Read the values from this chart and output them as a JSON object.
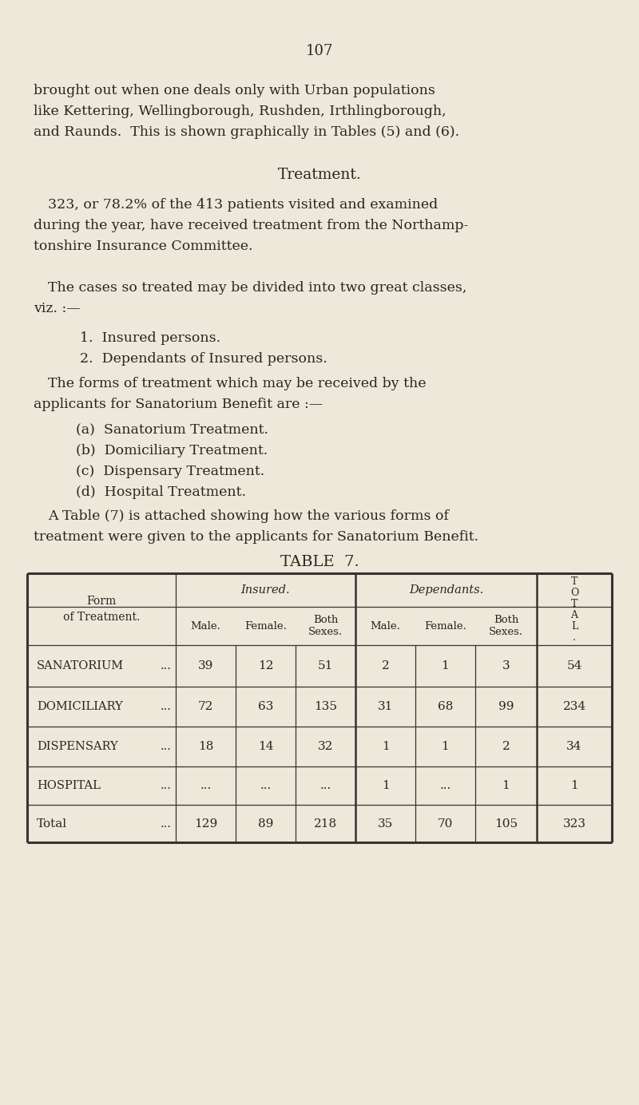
{
  "bg_color": "#ede8da",
  "text_color": "#2a2520",
  "page_number": "107",
  "para1_line1": "brought out when one deals only with Urban populations",
  "para1_line2": "like Kettering, Wellingborough, Rushden, Irthlingborough,",
  "para1_line3": "and Raunds.  This is shown graphically in Tables (5) and (6).",
  "section_title": "Treatment.",
  "para2_line1": "323, or 78.2% of the 413 patients visited and examined",
  "para2_line2": "during the year, have received treatment from the Northamp-",
  "para2_line3": "tonshire Insurance Committee.",
  "para3_line1": "The cases so treated may be divided into two great classes,",
  "para3_line2": "viz. :—",
  "list1_item1": "1.  Insured persons.",
  "list1_item2": "2.  Dependants of Insured persons.",
  "para4_line1": "The forms of treatment which may be received by the",
  "para4_line2": "applicants for Sanatorium Benefit are :—",
  "list2_item1": "(a)  Sanatorium Treatment.",
  "list2_item2": "(b)  Domiciliary Treatment.",
  "list2_item3": "(c)  Dispensary Treatment.",
  "list2_item4": "(d)  Hospital Treatment.",
  "para5_line1": "A Table (7) is attached showing how the various forms of",
  "para5_line2": "treatment were given to the applicants for Sanatorium Benefit.",
  "table_title": "TABLE  7.",
  "rows": [
    {
      "label": "Sanatorium",
      "ins_male": "39",
      "ins_female": "12",
      "ins_both": "51",
      "dep_male": "2",
      "dep_female": "1",
      "dep_both": "3",
      "total": "54"
    },
    {
      "label": "Domiciliary",
      "ins_male": "72",
      "ins_female": "63",
      "ins_both": "135",
      "dep_male": "31",
      "dep_female": "68",
      "dep_both": "99",
      "total": "234"
    },
    {
      "label": "Dispensary",
      "ins_male": "18",
      "ins_female": "14",
      "ins_both": "32",
      "dep_male": "1",
      "dep_female": "1",
      "dep_both": "2",
      "total": "34"
    },
    {
      "label": "Hospital",
      "ins_male": "...",
      "ins_female": "...",
      "ins_both": "...",
      "dep_male": "1",
      "dep_female": "...",
      "dep_both": "1",
      "total": "1"
    },
    {
      "label": "Total",
      "ins_male": "129",
      "ins_female": "89",
      "ins_both": "218",
      "dep_male": "35",
      "dep_female": "70",
      "dep_both": "105",
      "total": "323"
    }
  ]
}
